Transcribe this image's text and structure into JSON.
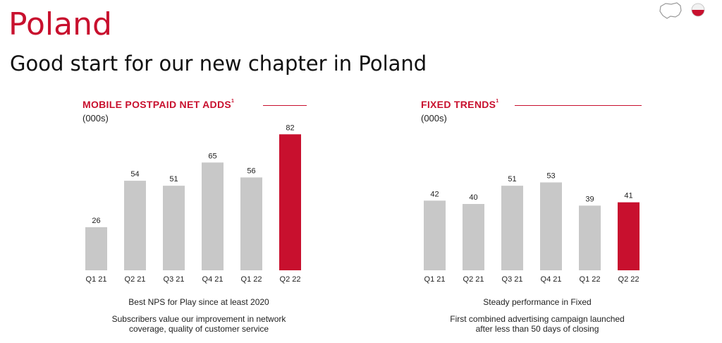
{
  "page": {
    "title": "Poland",
    "subtitle": "Good start for our new chapter in Poland"
  },
  "icons": [
    "poland-map-icon",
    "poland-flag-icon"
  ],
  "colors": {
    "accent": "#c8102e",
    "bar_default": "#c8c8c8",
    "bar_highlight": "#c8102e"
  },
  "left": {
    "title": "MOBILE POSTPAID NET ADDS",
    "footnote": "1",
    "unit": "(000s)",
    "caption1": "Best NPS for Play since at least 2020",
    "caption2_line1": "Subscribers value our improvement in network",
    "caption2_line2": "coverage, quality of customer service"
  },
  "right": {
    "title": "FIXED TRENDS",
    "footnote": "1",
    "unit": "(000s)",
    "caption1": "Steady performance in Fixed",
    "caption2_line1": "First combined advertising campaign launched",
    "caption2_line2": "after less than 50 days of closing"
  },
  "chart_data": [
    {
      "type": "bar",
      "title": "MOBILE POSTPAID NET ADDS",
      "ylabel": "(000s)",
      "categories": [
        "Q1 21",
        "Q2 21",
        "Q3 21",
        "Q4 21",
        "Q1 22",
        "Q2 22"
      ],
      "values": [
        26,
        54,
        51,
        65,
        56,
        82
      ],
      "highlight_index": 5,
      "data_labels": true,
      "grid": false,
      "legend": "none"
    },
    {
      "type": "bar",
      "title": "FIXED TRENDS",
      "ylabel": "(000s)",
      "categories": [
        "Q1 21",
        "Q2 21",
        "Q3 21",
        "Q4 21",
        "Q1 22",
        "Q2 22"
      ],
      "values": [
        42,
        40,
        51,
        53,
        39,
        41
      ],
      "highlight_index": 5,
      "data_labels": true,
      "grid": false,
      "legend": "none"
    }
  ]
}
